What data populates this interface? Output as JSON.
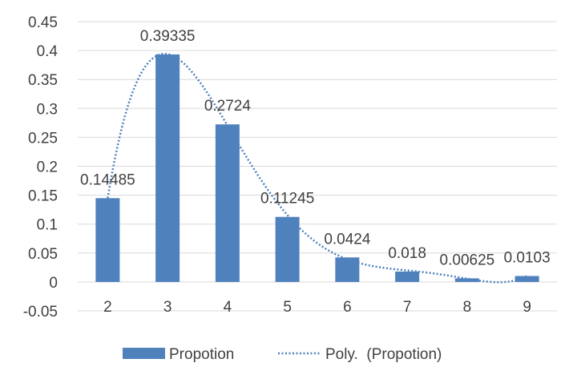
{
  "chart_data": {
    "type": "bar",
    "categories": [
      "2",
      "3",
      "4",
      "5",
      "6",
      "7",
      "8",
      "9"
    ],
    "series": [
      {
        "name": "Propotion",
        "values": [
          0.14485,
          0.39335,
          0.2724,
          0.11245,
          0.0424,
          0.018,
          0.00625,
          0.0103
        ],
        "data_labels": [
          "0.14485",
          "0.39335",
          "0.2724",
          "0.11245",
          "0.0424",
          "0.018",
          "0.00625",
          "0.0103"
        ],
        "color": "#4f81bd"
      }
    ],
    "trendline": {
      "name": "Poly.  (Propotion)",
      "type": "polynomial",
      "style": "dotted",
      "color": "#4f81bd"
    },
    "yticks": [
      "0.45",
      "0.4",
      "0.35",
      "0.3",
      "0.25",
      "0.2",
      "0.15",
      "0.1",
      "0.05",
      "0",
      "-0.05"
    ],
    "ylim": [
      -0.05,
      0.45
    ],
    "grid": true,
    "legend_position": "bottom"
  }
}
